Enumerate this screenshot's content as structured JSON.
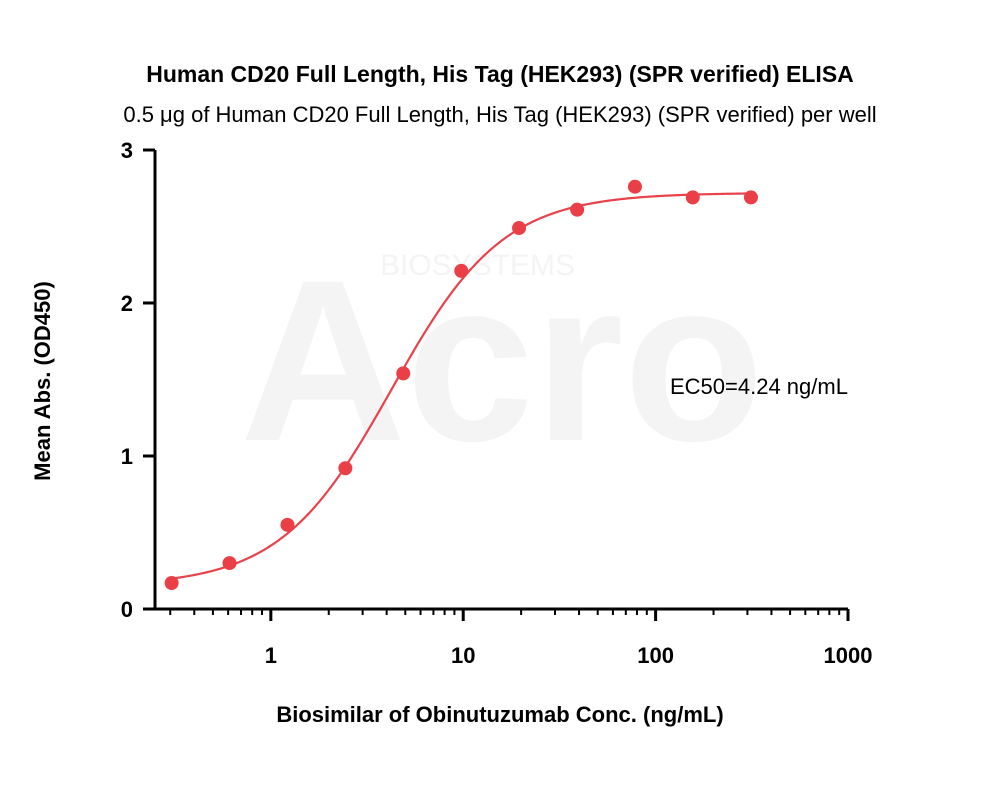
{
  "chart_data": {
    "type": "scatter",
    "title": "Human CD20 Full Length, His Tag (HEK293) (SPR verified) ELISA",
    "subtitle": "0.5 μg of Human CD20 Full Length, His Tag (HEK293) (SPR verified) per well",
    "xlabel": "Biosimilar of Obinutuzumab Conc. (ng/mL)",
    "ylabel": "Mean Abs. (OD450)",
    "x_scale": "log",
    "xlim": [
      0.25,
      1000
    ],
    "ylim": [
      0,
      3
    ],
    "x_ticks": [
      "1",
      "10",
      "100",
      "1000"
    ],
    "y_ticks": [
      "0",
      "1",
      "2",
      "3"
    ],
    "grid": false,
    "legend": "none",
    "annotation": "EC50=4.24 ng/mL",
    "point_color": "#ea3f47",
    "curve_color": "#e8434b",
    "watermark": "Acro BIOSYSTEMS",
    "series": [
      {
        "x": [
          0.305,
          0.61,
          1.22,
          2.44,
          4.88,
          9.77,
          19.5,
          39.1,
          78.1,
          156,
          313
        ],
        "y": [
          0.17,
          0.3,
          0.55,
          0.92,
          1.54,
          2.21,
          2.49,
          2.61,
          2.76,
          2.69,
          2.69
        ]
      }
    ],
    "fit_curve": {
      "bottom": 0.15,
      "top": 2.72,
      "ec50": 4.24,
      "hill": 1.5
    }
  }
}
